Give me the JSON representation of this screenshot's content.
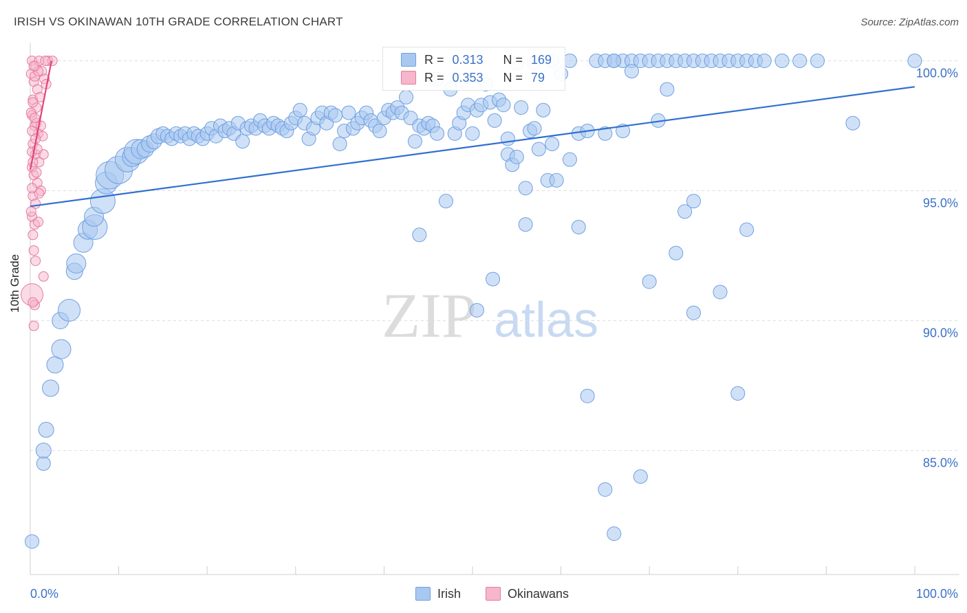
{
  "title": "IRISH VS OKINAWAN 10TH GRADE CORRELATION CHART",
  "source": "Source: ZipAtlas.com",
  "watermark": {
    "zip": "ZIP",
    "atlas": "atlas"
  },
  "colors": {
    "irish_fill": "#a9c8f0",
    "irish_stroke": "#6e9fe0",
    "irish_line": "#2f6fd0",
    "okinawan_fill": "#f6b6cb",
    "okinawan_stroke": "#e77aa0",
    "okinawan_line": "#e0457a",
    "tick_label": "#3a72c6",
    "grid": "#dddddd"
  },
  "legend": {
    "rows": [
      {
        "r_label": "R =",
        "r_value": "0.313",
        "n_label": "N =",
        "n_value": "169"
      },
      {
        "r_label": "R =",
        "r_value": "0.353",
        "n_label": "N =",
        "n_value": "79"
      }
    ]
  },
  "bottom_legend": {
    "irish": "Irish",
    "okinawans": "Okinawans"
  },
  "chart_data": {
    "type": "scatter",
    "title": "IRISH VS OKINAWAN 10TH GRADE CORRELATION CHART",
    "xlabel": "",
    "ylabel": "10th Grade",
    "xlim": [
      0,
      100
    ],
    "ylim": [
      80.6,
      100.7
    ],
    "x_tick_labels": [
      {
        "value": 0,
        "label": "0.0%"
      },
      {
        "value": 100,
        "label": "100.0%"
      }
    ],
    "y_ticks": [
      {
        "value": 85,
        "label": "85.0%"
      },
      {
        "value": 90,
        "label": "90.0%"
      },
      {
        "value": 95,
        "label": "95.0%"
      },
      {
        "value": 100,
        "label": "100.0%"
      }
    ],
    "x_minor_ticks": [
      10,
      20,
      30,
      40,
      50,
      60,
      70,
      80,
      90,
      100
    ],
    "series": [
      {
        "name": "Irish",
        "R": 0.313,
        "N": 169,
        "trend": {
          "x0": 0,
          "y0": 94.4,
          "x1": 100,
          "y1": 99.0
        },
        "points": [
          [
            0.2,
            81.5,
            10
          ],
          [
            1.5,
            84.5,
            10
          ],
          [
            1.5,
            85.0,
            11
          ],
          [
            1.8,
            85.8,
            11
          ],
          [
            2.3,
            87.4,
            12
          ],
          [
            2.8,
            88.3,
            12
          ],
          [
            3.5,
            88.9,
            14
          ],
          [
            3.4,
            90.0,
            12
          ],
          [
            4.4,
            90.4,
            16
          ],
          [
            5.0,
            91.9,
            12
          ],
          [
            5.2,
            92.2,
            14
          ],
          [
            6.0,
            93.0,
            14
          ],
          [
            6.5,
            93.5,
            14
          ],
          [
            7.3,
            93.6,
            18
          ],
          [
            7.2,
            94.0,
            14
          ],
          [
            8.2,
            94.6,
            18
          ],
          [
            8.6,
            95.3,
            16
          ],
          [
            9.0,
            95.6,
            20
          ],
          [
            10.0,
            95.8,
            20
          ],
          [
            11.0,
            96.2,
            18
          ],
          [
            11.5,
            96.3,
            14
          ],
          [
            12.0,
            96.5,
            18
          ],
          [
            12.5,
            96.6,
            14
          ],
          [
            13.0,
            96.6,
            12
          ],
          [
            13.5,
            96.8,
            12
          ],
          [
            14.0,
            96.9,
            11
          ],
          [
            14.5,
            97.1,
            11
          ],
          [
            15.0,
            97.2,
            10
          ],
          [
            15.5,
            97.1,
            10
          ],
          [
            16.0,
            97.0,
            10
          ],
          [
            16.5,
            97.2,
            10
          ],
          [
            17.0,
            97.1,
            10
          ],
          [
            17.5,
            97.2,
            10
          ],
          [
            18.0,
            97.0,
            10
          ],
          [
            18.5,
            97.2,
            10
          ],
          [
            19.0,
            97.1,
            10
          ],
          [
            19.5,
            97.0,
            10
          ],
          [
            20.0,
            97.2,
            10
          ],
          [
            20.5,
            97.4,
            10
          ],
          [
            21.0,
            97.1,
            10
          ],
          [
            21.5,
            97.5,
            10
          ],
          [
            22.0,
            97.3,
            10
          ],
          [
            22.5,
            97.4,
            10
          ],
          [
            23.0,
            97.2,
            10
          ],
          [
            23.5,
            97.6,
            10
          ],
          [
            24.0,
            96.9,
            10
          ],
          [
            24.5,
            97.4,
            10
          ],
          [
            25.0,
            97.5,
            10
          ],
          [
            25.5,
            97.4,
            10
          ],
          [
            26.0,
            97.7,
            10
          ],
          [
            26.5,
            97.5,
            10
          ],
          [
            27.0,
            97.4,
            10
          ],
          [
            27.5,
            97.6,
            10
          ],
          [
            28.0,
            97.5,
            10
          ],
          [
            28.5,
            97.4,
            10
          ],
          [
            29.0,
            97.3,
            10
          ],
          [
            29.5,
            97.6,
            10
          ],
          [
            30.0,
            97.8,
            10
          ],
          [
            30.5,
            98.1,
            10
          ],
          [
            31.0,
            97.6,
            10
          ],
          [
            31.5,
            97.0,
            10
          ],
          [
            32.0,
            97.4,
            10
          ],
          [
            32.5,
            97.8,
            10
          ],
          [
            33.0,
            98.0,
            10
          ],
          [
            33.5,
            97.6,
            10
          ],
          [
            34.0,
            98.0,
            10
          ],
          [
            34.5,
            97.9,
            10
          ],
          [
            35.0,
            96.8,
            10
          ],
          [
            35.5,
            97.3,
            10
          ],
          [
            36.0,
            98.0,
            10
          ],
          [
            36.5,
            97.4,
            10
          ],
          [
            37.0,
            97.6,
            10
          ],
          [
            37.5,
            97.8,
            10
          ],
          [
            38.0,
            98.0,
            10
          ],
          [
            38.5,
            97.7,
            10
          ],
          [
            39.0,
            97.5,
            10
          ],
          [
            39.5,
            97.3,
            10
          ],
          [
            40.0,
            97.8,
            10
          ],
          [
            40.5,
            98.1,
            10
          ],
          [
            41.0,
            98.0,
            10
          ],
          [
            41.5,
            98.2,
            10
          ],
          [
            42.0,
            98.0,
            10
          ],
          [
            42.5,
            98.6,
            10
          ],
          [
            43.0,
            97.8,
            10
          ],
          [
            43.5,
            96.9,
            10
          ],
          [
            44.0,
            97.5,
            10
          ],
          [
            44.5,
            97.4,
            10
          ],
          [
            45.0,
            97.6,
            10
          ],
          [
            45.5,
            97.5,
            10
          ],
          [
            46.0,
            97.2,
            10
          ],
          [
            47.0,
            94.6,
            10
          ],
          [
            47.5,
            98.9,
            10
          ],
          [
            48.0,
            97.2,
            10
          ],
          [
            48.5,
            97.6,
            10
          ],
          [
            49.0,
            98.0,
            10
          ],
          [
            49.5,
            98.3,
            10
          ],
          [
            50.0,
            97.2,
            10
          ],
          [
            50.5,
            98.1,
            10
          ],
          [
            51.0,
            98.3,
            10
          ],
          [
            51.5,
            99.1,
            10
          ],
          [
            52.0,
            98.4,
            10
          ],
          [
            52.5,
            97.7,
            10
          ],
          [
            53.0,
            98.5,
            10
          ],
          [
            53.5,
            98.3,
            10
          ],
          [
            54.0,
            96.4,
            10
          ],
          [
            54.5,
            96.0,
            10
          ],
          [
            55.0,
            96.3,
            10
          ],
          [
            55.5,
            98.2,
            10
          ],
          [
            56.0,
            95.1,
            10
          ],
          [
            56.5,
            97.3,
            10
          ],
          [
            57.0,
            97.4,
            10
          ],
          [
            57.5,
            96.6,
            10
          ],
          [
            58.0,
            98.1,
            10
          ],
          [
            58.5,
            95.4,
            10
          ],
          [
            59.0,
            96.8,
            10
          ],
          [
            59.5,
            95.4,
            10
          ],
          [
            60.0,
            99.5,
            10
          ],
          [
            61.0,
            96.2,
            10
          ],
          [
            62.0,
            97.2,
            10
          ],
          [
            63.0,
            97.3,
            10
          ],
          [
            64.0,
            100.0,
            10
          ],
          [
            65.0,
            100.0,
            10
          ],
          [
            66.0,
            100.0,
            10
          ],
          [
            67.0,
            100.0,
            10
          ],
          [
            68.0,
            100.0,
            10
          ],
          [
            69.0,
            100.0,
            10
          ],
          [
            70.0,
            100.0,
            10
          ],
          [
            71.0,
            100.0,
            10
          ],
          [
            72.0,
            100.0,
            10
          ],
          [
            73.0,
            100.0,
            10
          ],
          [
            74.0,
            100.0,
            10
          ],
          [
            75.0,
            100.0,
            10
          ],
          [
            76.0,
            100.0,
            10
          ],
          [
            77.0,
            100.0,
            10
          ],
          [
            78.0,
            100.0,
            10
          ],
          [
            79.0,
            100.0,
            10
          ],
          [
            80.0,
            100.0,
            10
          ],
          [
            81.0,
            100.0,
            10
          ],
          [
            82.0,
            100.0,
            10
          ],
          [
            83.0,
            100.0,
            10
          ],
          [
            85.0,
            100.0,
            10
          ],
          [
            87.0,
            100.0,
            10
          ],
          [
            89.0,
            100.0,
            10
          ],
          [
            100.0,
            100.0,
            10
          ],
          [
            93.0,
            97.6,
            10
          ],
          [
            44.0,
            93.3,
            10
          ],
          [
            52.3,
            91.6,
            10
          ],
          [
            50.5,
            90.4,
            10
          ],
          [
            63.0,
            87.1,
            10
          ],
          [
            65.0,
            83.5,
            10
          ],
          [
            66.0,
            81.8,
            10
          ],
          [
            69.0,
            84.0,
            10
          ],
          [
            70.0,
            91.5,
            10
          ],
          [
            73.0,
            92.6,
            10
          ],
          [
            75.0,
            90.3,
            10
          ],
          [
            78.0,
            91.1,
            10
          ],
          [
            80.0,
            87.2,
            10
          ],
          [
            81.0,
            93.5,
            10
          ],
          [
            74.0,
            94.2,
            10
          ],
          [
            75.0,
            94.6,
            10
          ],
          [
            62.0,
            93.6,
            10
          ],
          [
            56.0,
            93.7,
            10
          ],
          [
            68.0,
            99.6,
            10
          ],
          [
            72.0,
            98.9,
            10
          ],
          [
            55.0,
            99.9,
            10
          ],
          [
            57.0,
            99.9,
            10
          ],
          [
            59.0,
            100.0,
            10
          ],
          [
            61.0,
            100.0,
            10
          ],
          [
            66.0,
            100.0,
            10
          ],
          [
            71.0,
            97.7,
            10
          ],
          [
            67.0,
            97.3,
            10
          ],
          [
            46.0,
            99.3,
            10
          ],
          [
            65.0,
            97.2,
            10
          ],
          [
            54.0,
            97.0,
            10
          ]
        ]
      },
      {
        "name": "Okinawans",
        "R": 0.353,
        "N": 79,
        "trend": {
          "x0": 0.0,
          "y0": 95.8,
          "x1": 2.4,
          "y1": 100.0
        },
        "points": [
          [
            0.2,
            100.0,
            7
          ],
          [
            0.6,
            99.8,
            7
          ],
          [
            1.0,
            100.0,
            7
          ],
          [
            1.3,
            99.6,
            7
          ],
          [
            1.6,
            99.3,
            7
          ],
          [
            2.0,
            100.0,
            7
          ],
          [
            0.4,
            99.2,
            7
          ],
          [
            0.8,
            98.9,
            7
          ],
          [
            0.3,
            98.5,
            7
          ],
          [
            0.7,
            98.2,
            7
          ],
          [
            1.1,
            98.6,
            7
          ],
          [
            0.2,
            97.9,
            7
          ],
          [
            0.5,
            97.5,
            7
          ],
          [
            0.9,
            97.2,
            7
          ],
          [
            1.4,
            97.1,
            7
          ],
          [
            0.3,
            96.8,
            7
          ],
          [
            0.6,
            96.4,
            7
          ],
          [
            1.0,
            96.1,
            7
          ],
          [
            1.5,
            96.4,
            7
          ],
          [
            0.2,
            95.9,
            7
          ],
          [
            0.4,
            95.6,
            7
          ],
          [
            0.8,
            95.3,
            7
          ],
          [
            1.2,
            95.0,
            7
          ],
          [
            0.3,
            94.8,
            7
          ],
          [
            0.6,
            94.5,
            7
          ],
          [
            1.0,
            94.9,
            7
          ],
          [
            0.2,
            94.0,
            7
          ],
          [
            0.5,
            93.7,
            7
          ],
          [
            0.9,
            93.8,
            7
          ],
          [
            0.3,
            93.3,
            7
          ],
          [
            0.4,
            92.7,
            7
          ],
          [
            0.6,
            92.3,
            7
          ],
          [
            1.5,
            91.7,
            7
          ],
          [
            0.2,
            91.0,
            16
          ],
          [
            0.5,
            90.6,
            7
          ],
          [
            0.3,
            90.7,
            7
          ],
          [
            0.4,
            89.8,
            7
          ],
          [
            0.1,
            99.5,
            7
          ],
          [
            0.5,
            99.4,
            7
          ],
          [
            1.8,
            99.1,
            7
          ],
          [
            0.2,
            97.3,
            7
          ],
          [
            0.7,
            97.6,
            7
          ],
          [
            0.2,
            96.5,
            7
          ],
          [
            0.3,
            96.1,
            7
          ],
          [
            0.8,
            96.6,
            7
          ],
          [
            1.2,
            97.5,
            7
          ],
          [
            0.6,
            97.0,
            7
          ],
          [
            0.3,
            98.4,
            7
          ],
          [
            0.9,
            99.6,
            7
          ],
          [
            2.5,
            100.0,
            7
          ],
          [
            1.7,
            100.0,
            7
          ],
          [
            0.4,
            99.8,
            7
          ],
          [
            0.1,
            98.0,
            7
          ],
          [
            0.5,
            97.8,
            7
          ],
          [
            0.2,
            95.1,
            7
          ],
          [
            0.7,
            95.7,
            7
          ],
          [
            0.1,
            94.2,
            7
          ]
        ]
      }
    ]
  }
}
